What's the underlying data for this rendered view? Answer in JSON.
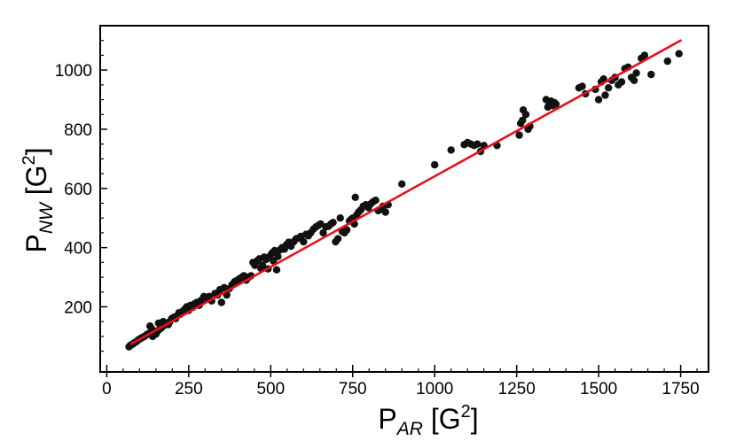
{
  "chart_data": {
    "type": "scatter",
    "title": "",
    "xlabel": {
      "base": "P",
      "sub": "AR",
      "unit_open": " [G",
      "sup": "2",
      "unit_close": "]"
    },
    "ylabel": {
      "base": "P",
      "sub": "NW",
      "unit_open": " [G",
      "sup": "2",
      "unit_close": "]"
    },
    "xlim": [
      -20,
      1835
    ],
    "ylim": [
      -20,
      1150
    ],
    "xticks": [
      0,
      250,
      500,
      750,
      1000,
      1250,
      1500,
      1750
    ],
    "yticks": [
      200,
      400,
      600,
      800,
      1000
    ],
    "x_tick_labels": [
      "0",
      "250",
      "500",
      "750",
      1000,
      1250,
      1500,
      1750
    ],
    "y_tick_labels": [
      "200",
      "400",
      "600",
      "800",
      "1000"
    ],
    "grid": false,
    "legend": "none",
    "colors": {
      "points": "#111111",
      "fit": "#e8101a",
      "frame": "#000000"
    },
    "series": [
      {
        "kind": "points",
        "points": [
          [
            68,
            65
          ],
          [
            72,
            70
          ],
          [
            76,
            72
          ],
          [
            80,
            75
          ],
          [
            84,
            78
          ],
          [
            90,
            82
          ],
          [
            96,
            88
          ],
          [
            102,
            92
          ],
          [
            108,
            96
          ],
          [
            115,
            100
          ],
          [
            122,
            106
          ],
          [
            128,
            110
          ],
          [
            132,
            135
          ],
          [
            138,
            125
          ],
          [
            140,
            100
          ],
          [
            145,
            112
          ],
          [
            150,
            108
          ],
          [
            155,
            118
          ],
          [
            158,
            145
          ],
          [
            162,
            125
          ],
          [
            168,
            130
          ],
          [
            172,
            150
          ],
          [
            176,
            138
          ],
          [
            182,
            145
          ],
          [
            188,
            140
          ],
          [
            192,
            150
          ],
          [
            198,
            160
          ],
          [
            205,
            165
          ],
          [
            210,
            160
          ],
          [
            215,
            170
          ],
          [
            220,
            180
          ],
          [
            225,
            175
          ],
          [
            232,
            185
          ],
          [
            238,
            192
          ],
          [
            244,
            200
          ],
          [
            250,
            188
          ],
          [
            255,
            205
          ],
          [
            262,
            198
          ],
          [
            268,
            210
          ],
          [
            275,
            215
          ],
          [
            282,
            205
          ],
          [
            288,
            222
          ],
          [
            296,
            235
          ],
          [
            304,
            228
          ],
          [
            312,
            235
          ],
          [
            320,
            220
          ],
          [
            330,
            245
          ],
          [
            338,
            240
          ],
          [
            345,
            258
          ],
          [
            350,
            215
          ],
          [
            358,
            265
          ],
          [
            366,
            240
          ],
          [
            374,
            262
          ],
          [
            382,
            275
          ],
          [
            390,
            285
          ],
          [
            398,
            290
          ],
          [
            405,
            295
          ],
          [
            412,
            300
          ],
          [
            418,
            305
          ],
          [
            425,
            290
          ],
          [
            432,
            300
          ],
          [
            440,
            305
          ],
          [
            446,
            350
          ],
          [
            452,
            340
          ],
          [
            458,
            355
          ],
          [
            465,
            362
          ],
          [
            470,
            330
          ],
          [
            475,
            340
          ],
          [
            480,
            368
          ],
          [
            486,
            360
          ],
          [
            492,
            328
          ],
          [
            498,
            372
          ],
          [
            504,
            382
          ],
          [
            508,
            355
          ],
          [
            512,
            390
          ],
          [
            518,
            325
          ],
          [
            522,
            370
          ],
          [
            528,
            392
          ],
          [
            535,
            400
          ],
          [
            542,
            395
          ],
          [
            548,
            410
          ],
          [
            555,
            418
          ],
          [
            562,
            405
          ],
          [
            570,
            420
          ],
          [
            578,
            430
          ],
          [
            585,
            432
          ],
          [
            592,
            438
          ],
          [
            600,
            420
          ],
          [
            608,
            445
          ],
          [
            615,
            440
          ],
          [
            622,
            450
          ],
          [
            630,
            462
          ],
          [
            638,
            470
          ],
          [
            645,
            475
          ],
          [
            652,
            480
          ],
          [
            660,
            450
          ],
          [
            668,
            470
          ],
          [
            676,
            472
          ],
          [
            684,
            480
          ],
          [
            690,
            485
          ],
          [
            698,
            420
          ],
          [
            705,
            430
          ],
          [
            712,
            500
          ],
          [
            718,
            455
          ],
          [
            725,
            450
          ],
          [
            732,
            460
          ],
          [
            740,
            490
          ],
          [
            745,
            495
          ],
          [
            750,
            500
          ],
          [
            755,
            480
          ],
          [
            758,
            570
          ],
          [
            762,
            510
          ],
          [
            768,
            520
          ],
          [
            775,
            528
          ],
          [
            782,
            540
          ],
          [
            790,
            545
          ],
          [
            798,
            535
          ],
          [
            805,
            548
          ],
          [
            812,
            555
          ],
          [
            820,
            560
          ],
          [
            828,
            525
          ],
          [
            835,
            530
          ],
          [
            842,
            540
          ],
          [
            850,
            520
          ],
          [
            858,
            545
          ],
          [
            900,
            615
          ],
          [
            1000,
            680
          ],
          [
            1050,
            730
          ],
          [
            1090,
            748
          ],
          [
            1100,
            755
          ],
          [
            1110,
            750
          ],
          [
            1120,
            745
          ],
          [
            1130,
            750
          ],
          [
            1140,
            725
          ],
          [
            1150,
            745
          ],
          [
            1190,
            745
          ],
          [
            1258,
            780
          ],
          [
            1262,
            820
          ],
          [
            1268,
            830
          ],
          [
            1270,
            865
          ],
          [
            1278,
            850
          ],
          [
            1285,
            800
          ],
          [
            1290,
            810
          ],
          [
            1340,
            900
          ],
          [
            1345,
            875
          ],
          [
            1350,
            890
          ],
          [
            1355,
            895
          ],
          [
            1360,
            880
          ],
          [
            1365,
            890
          ],
          [
            1370,
            885
          ],
          [
            1440,
            940
          ],
          [
            1450,
            945
          ],
          [
            1460,
            920
          ],
          [
            1490,
            935
          ],
          [
            1500,
            900
          ],
          [
            1508,
            960
          ],
          [
            1515,
            970
          ],
          [
            1520,
            915
          ],
          [
            1530,
            940
          ],
          [
            1540,
            965
          ],
          [
            1550,
            975
          ],
          [
            1560,
            950
          ],
          [
            1570,
            960
          ],
          [
            1580,
            1005
          ],
          [
            1590,
            1010
          ],
          [
            1600,
            975
          ],
          [
            1608,
            965
          ],
          [
            1615,
            990
          ],
          [
            1630,
            1040
          ],
          [
            1640,
            1050
          ],
          [
            1660,
            985
          ],
          [
            1710,
            1030
          ],
          [
            1745,
            1055
          ]
        ]
      },
      {
        "kind": "fit-line",
        "x": [
          75,
          1750
        ],
        "y": [
          75,
          1100
        ]
      }
    ]
  }
}
